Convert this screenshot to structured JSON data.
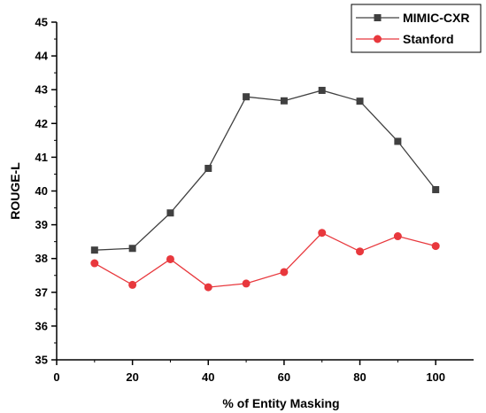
{
  "chart_data": {
    "type": "line",
    "title": "",
    "xlabel": "% of Entity Masking",
    "ylabel": "ROUGE-L",
    "xlim": [
      0,
      110
    ],
    "ylim": [
      35,
      45
    ],
    "xticks": [
      0,
      20,
      40,
      60,
      80,
      100
    ],
    "yticks": [
      35,
      36,
      37,
      38,
      39,
      40,
      41,
      42,
      43,
      44,
      45
    ],
    "grid": false,
    "legend_position": "top-right",
    "series": [
      {
        "name": "MIMIC-CXR",
        "marker": "square",
        "color": "#404040",
        "x": [
          10,
          20,
          30,
          40,
          50,
          60,
          70,
          80,
          90,
          100
        ],
        "y": [
          38.25,
          38.3,
          39.35,
          40.67,
          42.79,
          42.67,
          42.98,
          42.66,
          41.47,
          40.04
        ]
      },
      {
        "name": "Stanford",
        "marker": "circle",
        "color": "#e8383d",
        "x": [
          10,
          20,
          30,
          40,
          50,
          60,
          70,
          80,
          90,
          100
        ],
        "y": [
          37.86,
          37.22,
          37.98,
          37.15,
          37.26,
          37.6,
          38.76,
          38.21,
          38.66,
          38.37
        ]
      }
    ]
  }
}
